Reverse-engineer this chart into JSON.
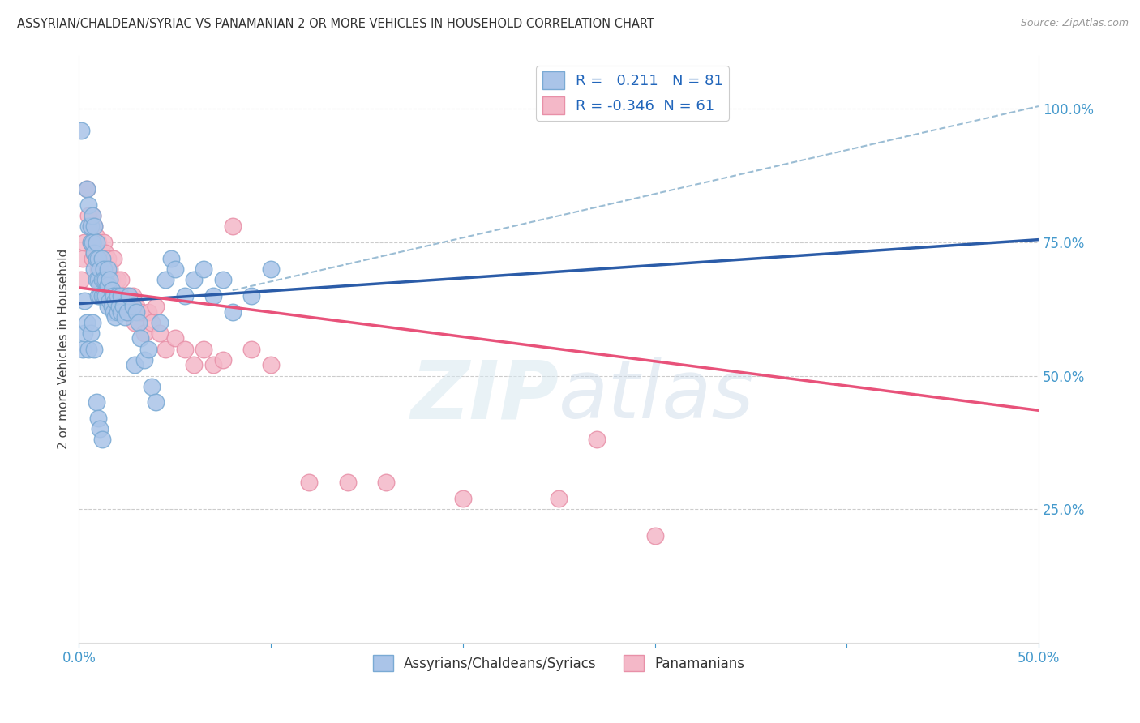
{
  "title": "ASSYRIAN/CHALDEAN/SYRIAC VS PANAMANIAN 2 OR MORE VEHICLES IN HOUSEHOLD CORRELATION CHART",
  "source": "Source: ZipAtlas.com",
  "ylabel": "2 or more Vehicles in Household",
  "xlim": [
    0.0,
    0.5
  ],
  "ylim": [
    0.0,
    1.1
  ],
  "xticks": [
    0.0,
    0.1,
    0.2,
    0.3,
    0.4,
    0.5
  ],
  "xticklabels": [
    "0.0%",
    "",
    "",
    "",
    "",
    "50.0%"
  ],
  "yticks_right": [
    0.25,
    0.5,
    0.75,
    1.0
  ],
  "ytick_labels_right": [
    "25.0%",
    "50.0%",
    "75.0%",
    "100.0%"
  ],
  "grid_color": "#cccccc",
  "background_color": "#ffffff",
  "watermark_zip": "ZIP",
  "watermark_atlas": "atlas",
  "blue_R": 0.211,
  "blue_N": 81,
  "pink_R": -0.346,
  "pink_N": 61,
  "blue_dot_color": "#aac4e8",
  "pink_dot_color": "#f4b8c8",
  "blue_dot_edge": "#7aaad4",
  "pink_dot_edge": "#e890a8",
  "blue_line_color": "#2b5ca8",
  "pink_line_color": "#e8527a",
  "ref_line_color": "#9bbdd4",
  "legend_label_blue": "Assyrians/Chaldeans/Syriacs",
  "legend_label_pink": "Panamanians",
  "blue_line_x0": 0.0,
  "blue_line_y0": 0.635,
  "blue_line_x1": 0.5,
  "blue_line_y1": 0.755,
  "pink_line_x0": 0.0,
  "pink_line_y0": 0.665,
  "pink_line_x1": 0.5,
  "pink_line_y1": 0.435,
  "ref_line_x0": 0.08,
  "ref_line_y0": 0.66,
  "ref_line_x1": 0.5,
  "ref_line_y1": 1.005,
  "blue_scatter_x": [
    0.001,
    0.003,
    0.004,
    0.005,
    0.005,
    0.006,
    0.006,
    0.007,
    0.007,
    0.008,
    0.008,
    0.008,
    0.009,
    0.009,
    0.009,
    0.01,
    0.01,
    0.01,
    0.011,
    0.011,
    0.011,
    0.012,
    0.012,
    0.012,
    0.013,
    0.013,
    0.013,
    0.014,
    0.014,
    0.015,
    0.015,
    0.015,
    0.016,
    0.016,
    0.017,
    0.017,
    0.018,
    0.018,
    0.019,
    0.019,
    0.02,
    0.02,
    0.021,
    0.022,
    0.022,
    0.023,
    0.024,
    0.025,
    0.026,
    0.028,
    0.029,
    0.03,
    0.031,
    0.032,
    0.034,
    0.036,
    0.038,
    0.04,
    0.042,
    0.045,
    0.048,
    0.05,
    0.055,
    0.06,
    0.065,
    0.07,
    0.075,
    0.08,
    0.09,
    0.1,
    0.002,
    0.003,
    0.004,
    0.005,
    0.006,
    0.007,
    0.008,
    0.009,
    0.01,
    0.011,
    0.012
  ],
  "blue_scatter_y": [
    0.96,
    0.64,
    0.85,
    0.82,
    0.78,
    0.78,
    0.75,
    0.8,
    0.75,
    0.78,
    0.73,
    0.7,
    0.75,
    0.72,
    0.68,
    0.72,
    0.68,
    0.65,
    0.7,
    0.67,
    0.65,
    0.72,
    0.68,
    0.65,
    0.7,
    0.68,
    0.65,
    0.68,
    0.65,
    0.7,
    0.67,
    0.63,
    0.68,
    0.64,
    0.66,
    0.63,
    0.65,
    0.62,
    0.64,
    0.61,
    0.65,
    0.62,
    0.63,
    0.65,
    0.62,
    0.63,
    0.61,
    0.62,
    0.65,
    0.63,
    0.52,
    0.62,
    0.6,
    0.57,
    0.53,
    0.55,
    0.48,
    0.45,
    0.6,
    0.68,
    0.72,
    0.7,
    0.65,
    0.68,
    0.7,
    0.65,
    0.68,
    0.62,
    0.65,
    0.7,
    0.55,
    0.58,
    0.6,
    0.55,
    0.58,
    0.6,
    0.55,
    0.45,
    0.42,
    0.4,
    0.38
  ],
  "pink_scatter_x": [
    0.001,
    0.002,
    0.003,
    0.004,
    0.005,
    0.006,
    0.006,
    0.007,
    0.007,
    0.008,
    0.008,
    0.009,
    0.009,
    0.01,
    0.01,
    0.011,
    0.011,
    0.012,
    0.013,
    0.013,
    0.014,
    0.015,
    0.015,
    0.016,
    0.017,
    0.018,
    0.019,
    0.02,
    0.021,
    0.022,
    0.023,
    0.024,
    0.025,
    0.026,
    0.027,
    0.028,
    0.029,
    0.03,
    0.032,
    0.034,
    0.036,
    0.038,
    0.04,
    0.042,
    0.045,
    0.05,
    0.055,
    0.06,
    0.065,
    0.07,
    0.075,
    0.08,
    0.09,
    0.1,
    0.12,
    0.14,
    0.16,
    0.2,
    0.25,
    0.27,
    0.3
  ],
  "pink_scatter_y": [
    0.68,
    0.72,
    0.75,
    0.85,
    0.8,
    0.78,
    0.75,
    0.8,
    0.72,
    0.78,
    0.73,
    0.76,
    0.72,
    0.75,
    0.7,
    0.73,
    0.68,
    0.72,
    0.75,
    0.7,
    0.73,
    0.72,
    0.68,
    0.7,
    0.68,
    0.72,
    0.65,
    0.68,
    0.65,
    0.68,
    0.65,
    0.62,
    0.65,
    0.63,
    0.62,
    0.65,
    0.6,
    0.63,
    0.62,
    0.58,
    0.62,
    0.6,
    0.63,
    0.58,
    0.55,
    0.57,
    0.55,
    0.52,
    0.55,
    0.52,
    0.53,
    0.78,
    0.55,
    0.52,
    0.3,
    0.3,
    0.3,
    0.27,
    0.27,
    0.38,
    0.2
  ]
}
